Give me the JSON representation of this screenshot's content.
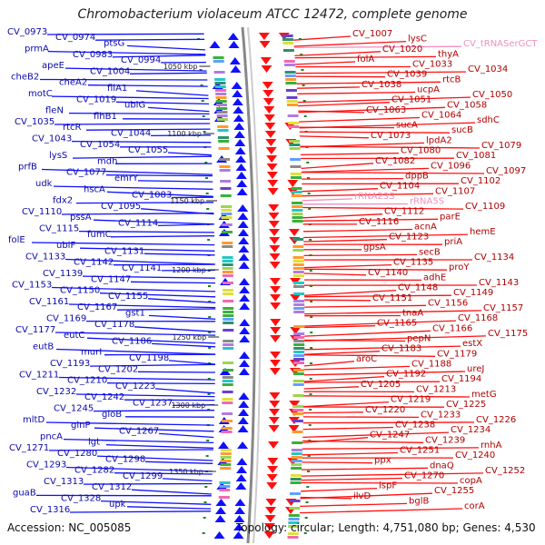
{
  "title": "Chromobacterium violaceum ATCC 12472, complete genome",
  "footer": {
    "accession": "Accession: NC_005085",
    "topology": "Topology: circular; Length: 4,751,080 bp; Genes: 4,530"
  },
  "colors": {
    "left_genes": "#1010ff",
    "right_genes": "#ff1010",
    "rna_genes": "#f08fc0",
    "backbone": "#888888",
    "ticks": "#1a8a1a"
  },
  "scale": [
    "1050 kbp",
    "1100 kbp",
    "1150 kbp",
    "1200 kbp",
    "1250 kbp",
    "1300 kbp",
    "1350 kbp"
  ],
  "left_labels": [
    "CV_0973",
    "CV_0974",
    "ptsG",
    "prmA",
    "CV_0983",
    "CV_0994",
    "apeE",
    "CV_1004",
    "cheB2",
    "cheA2",
    "fliA1",
    "motC",
    "CV_1019",
    "ubiG",
    "fleN",
    "flhB1",
    "CV_1035",
    "rtcR",
    "CV_1044",
    "CV_1043",
    "CV_1054",
    "CV_1055",
    "lysS",
    "mdh",
    "prfB",
    "CV_1077",
    "emrY",
    "udk",
    "hscA",
    "CV_1083",
    "fdx2",
    "CV_1095",
    "CV_1110",
    "pssA",
    "CV_1114",
    "CV_1115",
    "fumC",
    "folE",
    "ubiF",
    "CV_1131",
    "CV_1133",
    "CV_1142",
    "CV_1141",
    "CV_1139",
    "CV_1147",
    "CV_1153",
    "CV_1150",
    "CV_1155",
    "CV_1161",
    "CV_1167",
    "gst1",
    "CV_1169",
    "CV_1178",
    "CV_1177",
    "eutC",
    "CV_1186",
    "eutB",
    "murI",
    "CV_1198",
    "CV_1193",
    "CV_1202",
    "CV_1211",
    "CV_1210",
    "CV_1223",
    "CV_1232",
    "CV_1242",
    "CV_1237",
    "CV_1245",
    "gloB",
    "mltD",
    "glnP",
    "CV_1267",
    "pncA",
    "lgt",
    "CV_1271",
    "CV_1280",
    "CV_1298",
    "CV_1293",
    "CV_1282",
    "CV_1299",
    "CV_1313",
    "CV_1312",
    "guaB",
    "CV_1328",
    "upk",
    "CV_1316"
  ],
  "right_labels": [
    "CV_1007",
    "lysC",
    "CV_tRNASerGCT",
    "CV_1020",
    "thyA",
    "folA",
    "CV_1033",
    "CV_1034",
    "CV_1039",
    "rtcB",
    "CV_1038",
    "ucpA",
    "CV_1050",
    "CV_1051",
    "CV_1058",
    "CV_1063",
    "CV_1064",
    "sdhC",
    "sucA",
    "sucB",
    "CV_1073",
    "lpdA2",
    "CV_1079",
    "CV_1080",
    "CV_1081",
    "CV_1082",
    "CV_1096",
    "CV_1097",
    "dppB",
    "CV_1102",
    "CV_1104",
    "CV_1107",
    "rRNA23S",
    "rRNA5S",
    "CV_1109",
    "CV_1112",
    "parE",
    "CV_1116",
    "acnA",
    "hemE",
    "CV_1123",
    "priA",
    "gpsA",
    "secB",
    "CV_1134",
    "CV_1135",
    "proY",
    "CV_1140",
    "adhE",
    "CV_1143",
    "CV_1148",
    "CV_1149",
    "CV_1151",
    "CV_1156",
    "CV_1157",
    "tnaA",
    "CV_1168",
    "CV_1165",
    "CV_1166",
    "CV_1175",
    "pepN",
    "estX",
    "CV_1183",
    "CV_1179",
    "aroC",
    "CV_1188",
    "ureJ",
    "CV_1192",
    "CV_1194",
    "CV_1205",
    "CV_1213",
    "metG",
    "CV_1219",
    "CV_1225",
    "CV_1220",
    "CV_1233",
    "CV_1226",
    "CV_1238",
    "CV_1234",
    "CV_1247",
    "CV_1239",
    "rnhA",
    "CV_1251",
    "CV_1240",
    "ppx",
    "dnaQ",
    "CV_1252",
    "CV_1270",
    "copA",
    "ispF",
    "CV_1255",
    "ilvD",
    "bglB",
    "corA"
  ]
}
